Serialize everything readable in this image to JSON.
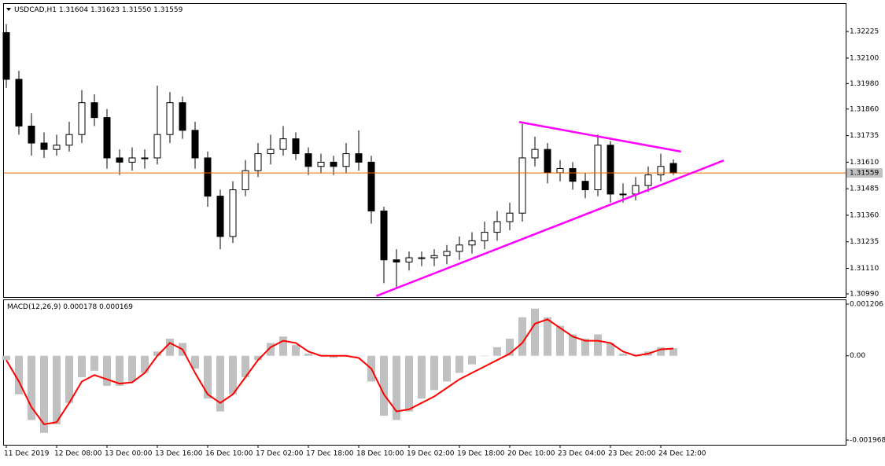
{
  "chart_data": [
    {
      "type": "candlestick",
      "title": "USDCAD,H1",
      "header_labels": [
        "1.31604",
        "1.31623",
        "1.31550",
        "1.31559"
      ],
      "categories": [
        "11 Dec 2019",
        null,
        null,
        null,
        "12 Dec 08:00",
        null,
        null,
        null,
        "13 Dec 00:00",
        null,
        null,
        null,
        "13 Dec 16:00",
        null,
        null,
        null,
        "16 Dec 10:00",
        null,
        null,
        null,
        "17 Dec 02:00",
        null,
        null,
        null,
        "17 Dec 18:00",
        null,
        null,
        null,
        "18 Dec 10:00",
        null,
        null,
        null,
        "19 Dec 02:00",
        null,
        null,
        null,
        "19 Dec 18:00",
        null,
        null,
        null,
        "20 Dec 10:00",
        null,
        null,
        null,
        "23 Dec 04:00",
        null,
        null,
        null,
        "23 Dec 20:00",
        null,
        null,
        null,
        "24 Dec 12:00",
        null
      ],
      "open": [
        1.3222,
        1.32,
        1.3178,
        1.317,
        1.3167,
        1.3169,
        1.3174,
        1.3189,
        1.3182,
        1.3163,
        1.3161,
        1.3163,
        1.3163,
        1.3174,
        1.3189,
        1.3176,
        1.3163,
        1.3145,
        1.3126,
        1.3148,
        1.3157,
        1.3165,
        1.3167,
        1.3172,
        1.3165,
        1.3159,
        1.3161,
        1.3159,
        1.3165,
        1.3161,
        1.3138,
        1.3115,
        1.3114,
        1.3116,
        1.3116,
        1.3117,
        1.3119,
        1.3122,
        1.3124,
        1.3128,
        1.3133,
        1.3137,
        1.3163,
        1.3167,
        1.3156,
        1.3158,
        1.3152,
        1.3148,
        1.3169,
        1.3146,
        1.3146,
        1.315,
        1.3155,
        1.31604
      ],
      "high": [
        1.3226,
        1.3204,
        1.3184,
        1.3175,
        1.3174,
        1.318,
        1.3195,
        1.3193,
        1.3186,
        1.3167,
        1.3168,
        1.3167,
        1.3197,
        1.3194,
        1.3192,
        1.318,
        1.3166,
        1.3148,
        1.3152,
        1.3162,
        1.317,
        1.3174,
        1.3178,
        1.3175,
        1.3168,
        1.3165,
        1.3164,
        1.317,
        1.3176,
        1.3164,
        1.314,
        1.312,
        1.3119,
        1.3119,
        1.312,
        1.3122,
        1.3126,
        1.3128,
        1.3133,
        1.3138,
        1.3142,
        1.3179,
        1.3173,
        1.317,
        1.3162,
        1.3161,
        1.3156,
        1.3174,
        1.3171,
        1.3151,
        1.3154,
        1.3159,
        1.3165,
        1.31623
      ],
      "low": [
        1.3196,
        1.3174,
        1.3164,
        1.3163,
        1.3164,
        1.3166,
        1.317,
        1.3178,
        1.3158,
        1.3155,
        1.3157,
        1.3158,
        1.316,
        1.317,
        1.3172,
        1.3158,
        1.314,
        1.312,
        1.3123,
        1.3145,
        1.3154,
        1.316,
        1.3164,
        1.3162,
        1.3155,
        1.3156,
        1.3155,
        1.3156,
        1.3157,
        1.3132,
        1.3104,
        1.3102,
        1.311,
        1.3112,
        1.3112,
        1.3113,
        1.3115,
        1.3118,
        1.312,
        1.3124,
        1.3129,
        1.3133,
        1.3159,
        1.3151,
        1.3152,
        1.3148,
        1.3144,
        1.3145,
        1.3142,
        1.3142,
        1.3143,
        1.3147,
        1.3152,
        1.3155
      ],
      "close": [
        1.32,
        1.3178,
        1.317,
        1.3167,
        1.3169,
        1.3174,
        1.3189,
        1.3182,
        1.3163,
        1.3161,
        1.3163,
        1.3163,
        1.3174,
        1.3189,
        1.3176,
        1.3163,
        1.3145,
        1.3126,
        1.3148,
        1.3157,
        1.3165,
        1.3167,
        1.3172,
        1.3165,
        1.3159,
        1.3161,
        1.3159,
        1.3165,
        1.3161,
        1.3138,
        1.3115,
        1.3114,
        1.3116,
        1.3116,
        1.3117,
        1.3119,
        1.3122,
        1.3124,
        1.3128,
        1.3133,
        1.3137,
        1.3163,
        1.3167,
        1.3156,
        1.3158,
        1.3152,
        1.3148,
        1.3169,
        1.3146,
        1.3146,
        1.315,
        1.3155,
        1.3159,
        1.31559
      ],
      "ylim": [
        1.30975,
        1.32355
      ],
      "yticks": [
        1.32225,
        {
          "value": 1.321,
          "label": "1.32100"
        },
        {
          "value": 1.3198,
          "label": "1.31980"
        },
        {
          "value": 1.3186,
          "label": "1.31860"
        },
        1.31735,
        {
          "value": 1.3161,
          "label": "1.31610"
        },
        1.31485,
        {
          "value": 1.3136,
          "label": "1.31360"
        },
        1.31235,
        {
          "value": 1.3111,
          "label": "1.31110"
        },
        {
          "value": 1.3099,
          "label": "1.30990"
        }
      ],
      "price_line": 1.31559,
      "price_line_color": "#f06a00",
      "trendlines": [
        {
          "color": "#ff00ff",
          "x": [
            40.75,
            53.6
          ],
          "y": [
            1.31799,
            1.3166
          ]
        },
        {
          "color": "#ff00ff",
          "x": [
            29.4,
            57
          ],
          "y": [
            1.3098,
            1.31618
          ]
        }
      ]
    },
    {
      "type": "macd",
      "title": "MACD(12,26,9)",
      "series": [
        {
          "type": "histogram",
          "color": "#c0c0c0",
          "values": [
            -0.0001,
            -0.0009,
            -0.0015,
            -0.0018,
            -0.0016,
            -0.0011,
            -0.0005,
            -0.00035,
            -0.0007,
            -0.0007,
            -0.0006,
            -0.0004,
            0.0001,
            0.0004,
            0.0003,
            -0.0003,
            -0.001,
            -0.0013,
            -0.0009,
            -0.0005,
            -0.0001,
            0.0003,
            0.00045,
            0.00025,
            5e-05,
            2e-05,
            -5e-05,
            0,
            0,
            -0.0006,
            -0.0014,
            -0.0015,
            -0.0013,
            -0.001,
            -0.0008,
            -0.0006,
            -0.0004,
            -0.0002,
            0,
            0.0002,
            0.0004,
            0.0009,
            0.0011,
            0.0009,
            0.0007,
            0.0005,
            0.0004,
            0.0005,
            0.0003,
            5e-05,
            0,
            0.0001,
            0.0002,
            0.000178
          ]
        },
        {
          "type": "line",
          "color": "#ff0000",
          "values": [
            -0.0001,
            -0.0006,
            -0.0012,
            -0.0016,
            -0.00155,
            -0.0011,
            -0.0006,
            -0.00045,
            -0.00055,
            -0.00065,
            -0.00062,
            -0.0004,
            0,
            0.0003,
            0.00015,
            -0.0004,
            -0.0009,
            -0.0011,
            -0.0009,
            -0.0005,
            -0.0001,
            0.0002,
            0.00035,
            0.0003,
            0.0001,
            0,
            0,
            0,
            -5e-05,
            -0.0003,
            -0.0009,
            -0.0013,
            -0.00125,
            -0.0011,
            -0.00095,
            -0.00075,
            -0.00055,
            -0.0004,
            -0.00025,
            -0.0001,
            5e-05,
            0.0003,
            0.00075,
            0.00085,
            0.00065,
            0.00045,
            0.00035,
            0.00035,
            0.0003,
            0.0001,
            0,
            5e-05,
            0.00015,
            0.000169
          ]
        }
      ],
      "ylim": [
        -0.002078,
        0.001298
      ],
      "yticks": [
        0.001206,
        {
          "value": 0,
          "label": "0.00"
        },
        -0.001968
      ]
    }
  ]
}
